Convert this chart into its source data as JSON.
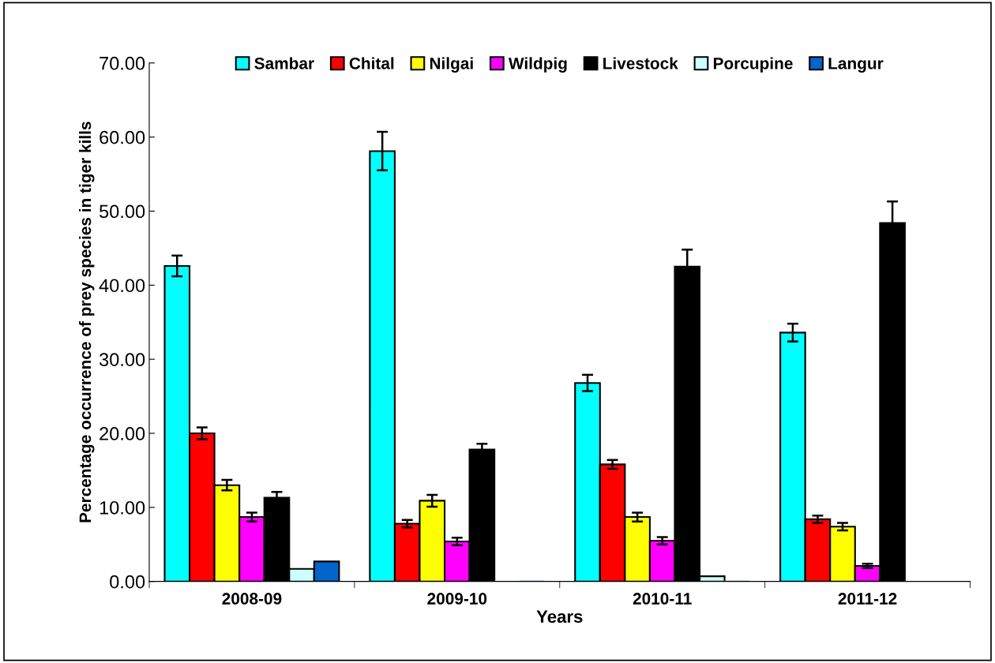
{
  "chart_data": {
    "type": "bar",
    "xlabel": "Years",
    "ylabel": "Percentage occurrence of prey species in tiger kills",
    "categories": [
      "2008-09",
      "2009-10",
      "2010-11",
      "2011-12"
    ],
    "series": [
      {
        "name": "Sambar",
        "color": "#00ffff",
        "values": [
          42.6,
          58.1,
          26.8,
          33.6
        ],
        "errors": [
          1.4,
          2.6,
          1.1,
          1.2
        ]
      },
      {
        "name": "Chital",
        "color": "#ff0000",
        "values": [
          20.0,
          7.8,
          15.8,
          8.4
        ],
        "errors": [
          0.8,
          0.5,
          0.6,
          0.5
        ]
      },
      {
        "name": "Nilgai",
        "color": "#ffff00",
        "values": [
          13.0,
          10.9,
          8.7,
          7.4
        ],
        "errors": [
          0.7,
          0.8,
          0.6,
          0.5
        ]
      },
      {
        "name": "Wildpig",
        "color": "#ff00ff",
        "values": [
          8.7,
          5.4,
          5.5,
          2.1
        ],
        "errors": [
          0.6,
          0.5,
          0.5,
          0.3
        ]
      },
      {
        "name": "Livestock",
        "color": "#000000",
        "values": [
          11.3,
          17.8,
          42.5,
          48.4
        ],
        "errors": [
          0.8,
          0.8,
          2.3,
          2.9
        ]
      },
      {
        "name": "Porcupine",
        "color": "#ccffff",
        "values": [
          1.7,
          0,
          0.7,
          null
        ]
      },
      {
        "name": "Langur",
        "color": "#0066cc",
        "values": [
          2.7,
          0,
          0,
          null
        ]
      }
    ],
    "ylim": [
      0,
      70
    ],
    "yticks": [
      {
        "value": 0,
        "label": "0.00"
      },
      {
        "value": 10,
        "label": "10.00"
      },
      {
        "value": 20,
        "label": "20.00"
      },
      {
        "value": 30,
        "label": "30.00"
      },
      {
        "value": 40,
        "label": "40.00"
      },
      {
        "value": 50,
        "label": "50.00"
      },
      {
        "value": 60,
        "label": "60.00"
      },
      {
        "value": 70,
        "label": "70.00"
      }
    ],
    "grid": false,
    "legend": "top"
  }
}
